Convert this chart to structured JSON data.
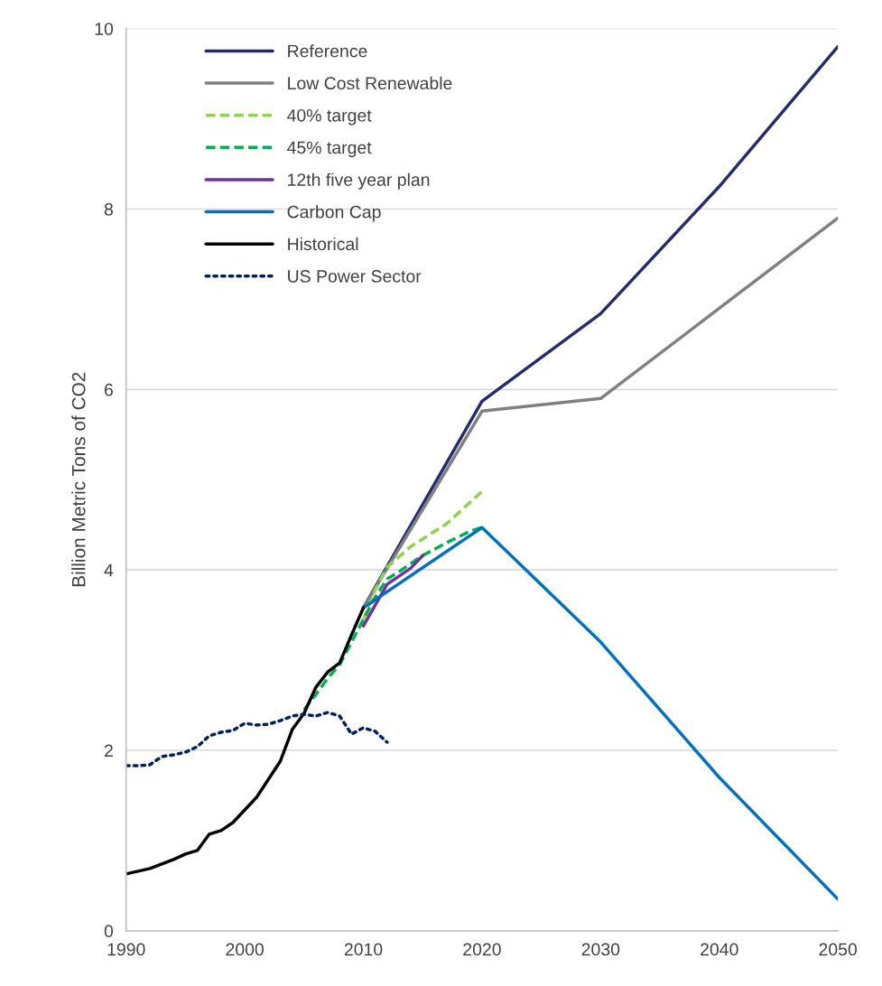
{
  "chart_data": {
    "type": "line",
    "ylabel": "Billion Metric Tons of CO2",
    "xlim": [
      1990,
      2050
    ],
    "xticks": [
      1990,
      2000,
      2010,
      2020,
      2030,
      2040,
      2050
    ],
    "ylim": [
      0,
      10
    ],
    "yticks": [
      0,
      2,
      4,
      6,
      8,
      10
    ],
    "grid": "y",
    "legend": "top left",
    "series": [
      {
        "name": "Reference",
        "color": "#262a6e",
        "line_style": "solid",
        "x": [
          2010,
          2020,
          2030,
          2040,
          2050
        ],
        "values": [
          3.58,
          5.87,
          6.84,
          8.25,
          9.8
        ]
      },
      {
        "name": "Low Cost Renewable",
        "color": "#808080",
        "line_style": "solid",
        "x": [
          2010,
          2020,
          2030,
          2040,
          2050
        ],
        "values": [
          3.58,
          5.76,
          5.9,
          6.9,
          7.9
        ]
      },
      {
        "name": "40% target",
        "color": "#92d050",
        "line_style": "dashed",
        "x": [
          2010,
          2011,
          2012,
          2014,
          2017,
          2020
        ],
        "values": [
          3.45,
          3.78,
          4.03,
          4.26,
          4.51,
          4.87
        ]
      },
      {
        "name": "45% target",
        "color": "#00b050",
        "line_style": "dashed",
        "x": [
          2005,
          2006,
          2007,
          2008,
          2009,
          2010,
          2011,
          2012,
          2013,
          2015,
          2017,
          2019,
          2020
        ],
        "values": [
          2.45,
          2.62,
          2.8,
          2.95,
          3.2,
          3.45,
          3.7,
          3.9,
          3.98,
          4.16,
          4.3,
          4.43,
          4.47
        ]
      },
      {
        "name": "12th five year plan",
        "color": "#7030a0",
        "line_style": "solid",
        "x": [
          2010,
          2011,
          2012,
          2013,
          2014,
          2015
        ],
        "values": [
          3.38,
          3.61,
          3.84,
          3.93,
          4.02,
          4.16
        ]
      },
      {
        "name": "Carbon Cap",
        "color": "#0070c0",
        "line_style": "solid",
        "x": [
          2010,
          2020,
          2030,
          2040,
          2050
        ],
        "values": [
          3.58,
          4.47,
          3.2,
          1.7,
          0.35
        ]
      },
      {
        "name": "Historical",
        "color": "#000000",
        "line_style": "solid",
        "x": [
          1990,
          1992,
          1994,
          1995,
          1996,
          1997,
          1998,
          1999,
          2000,
          2001,
          2002,
          2003,
          2004,
          2005,
          2006,
          2007,
          2008,
          2009,
          2010
        ],
        "values": [
          0.63,
          0.69,
          0.79,
          0.85,
          0.89,
          1.07,
          1.11,
          1.2,
          1.34,
          1.48,
          1.68,
          1.88,
          2.23,
          2.41,
          2.7,
          2.87,
          2.97,
          3.28,
          3.58
        ]
      },
      {
        "name": "US Power Sector",
        "color": "#002060",
        "line_style": "dotted",
        "x": [
          1990,
          1991,
          1992,
          1993,
          1994,
          1995,
          1996,
          1997,
          1998,
          1999,
          2000,
          2001,
          2002,
          2003,
          2004,
          2005,
          2006,
          2007,
          2008,
          2009,
          2010,
          2011,
          2012
        ],
        "values": [
          1.83,
          1.83,
          1.84,
          1.93,
          1.95,
          1.98,
          2.04,
          2.16,
          2.2,
          2.22,
          2.3,
          2.28,
          2.29,
          2.33,
          2.38,
          2.4,
          2.38,
          2.42,
          2.38,
          2.18,
          2.25,
          2.21,
          2.09
        ]
      }
    ]
  }
}
